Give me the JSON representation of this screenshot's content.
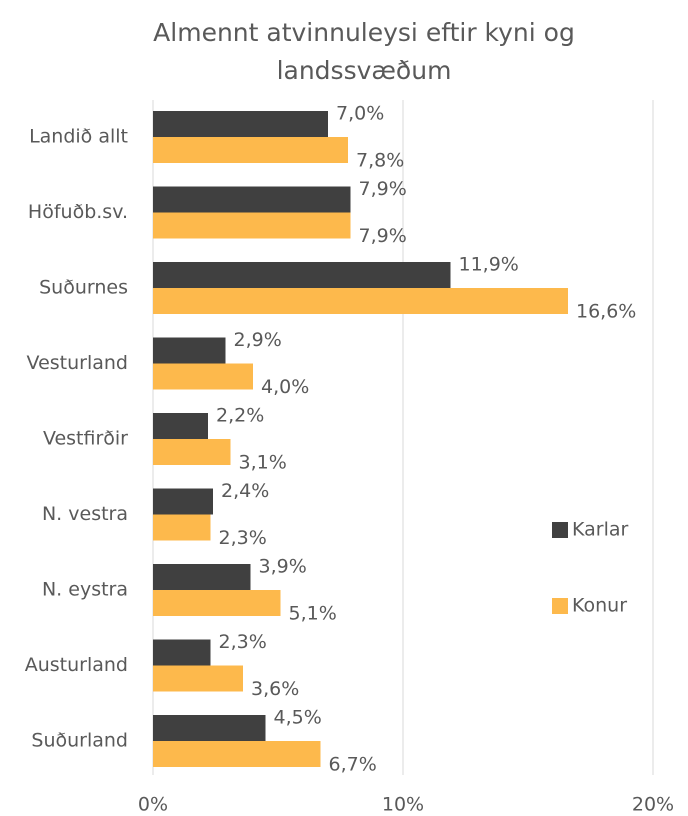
{
  "chart_data": {
    "type": "bar",
    "orientation": "horizontal",
    "title": "Almennt atvinnuleysi eftir kyni og landssvæðum",
    "categories": [
      "Landið allt",
      "Höfuðb.sv.",
      "Suðurnes",
      "Vesturland",
      "Vestfirðir",
      "N. vestra",
      "N. eystra",
      "Austurland",
      "Suðurland"
    ],
    "series": [
      {
        "name": "Karlar",
        "color": "#404040",
        "values": [
          7.0,
          7.9,
          11.9,
          2.9,
          2.2,
          2.4,
          3.9,
          2.3,
          4.5
        ],
        "value_labels": [
          "7,0%",
          "7,9%",
          "11,9%",
          "2,9%",
          "2,2%",
          "2,4%",
          "3,9%",
          "2,3%",
          "4,5%"
        ]
      },
      {
        "name": "Konur",
        "color": "#FDB94C",
        "values": [
          7.8,
          7.9,
          16.6,
          4.0,
          3.1,
          2.3,
          5.1,
          3.6,
          6.7
        ],
        "value_labels": [
          "7,8%",
          "7,9%",
          "16,6%",
          "4,0%",
          "3,1%",
          "2,3%",
          "5,1%",
          "3,6%",
          "6,7%"
        ]
      }
    ],
    "xlim": [
      0,
      20
    ],
    "xticks": [
      {
        "value": 0,
        "label": "0%"
      },
      {
        "value": 10,
        "label": "10%"
      },
      {
        "value": 20,
        "label": "20%"
      }
    ],
    "grid": true,
    "legend": "right"
  }
}
